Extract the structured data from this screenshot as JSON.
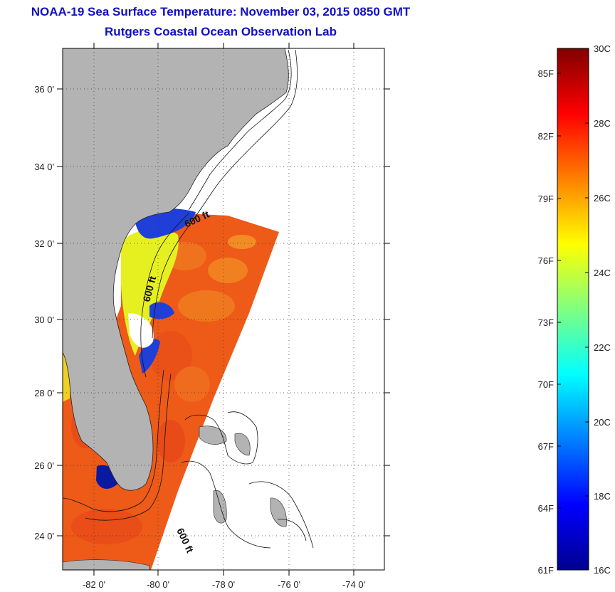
{
  "header": {
    "title": "NOAA-19 Sea Surface Temperature:  November 03, 2015 0850 GMT",
    "subtitle": "Rutgers Coastal Ocean Observation Lab"
  },
  "map": {
    "lat_ticks": [
      "36 0'",
      "34 0'",
      "32 0'",
      "30 0'",
      "28 0'",
      "26 0'",
      "24 0'"
    ],
    "lon_ticks": [
      "-82 0'",
      "-80 0'",
      "-78 0'",
      "-76 0'",
      "-74 0'"
    ],
    "contour_labels": [
      "600 ft",
      "600 ft",
      "600 ft"
    ],
    "colors": {
      "land": "#b3b3b3",
      "no_data": "#ffffff",
      "sst_dominant": "#ee5a18"
    }
  },
  "colorbar": {
    "fahrenheit_labels": [
      "85F",
      "82F",
      "79F",
      "76F",
      "73F",
      "70F",
      "67F",
      "64F",
      "61F"
    ],
    "celsius_labels": [
      "30C",
      "28C",
      "26C",
      "24C",
      "22C",
      "20C",
      "18C",
      "16C"
    ],
    "colormap": "jet",
    "range_c": [
      16,
      30
    ]
  }
}
